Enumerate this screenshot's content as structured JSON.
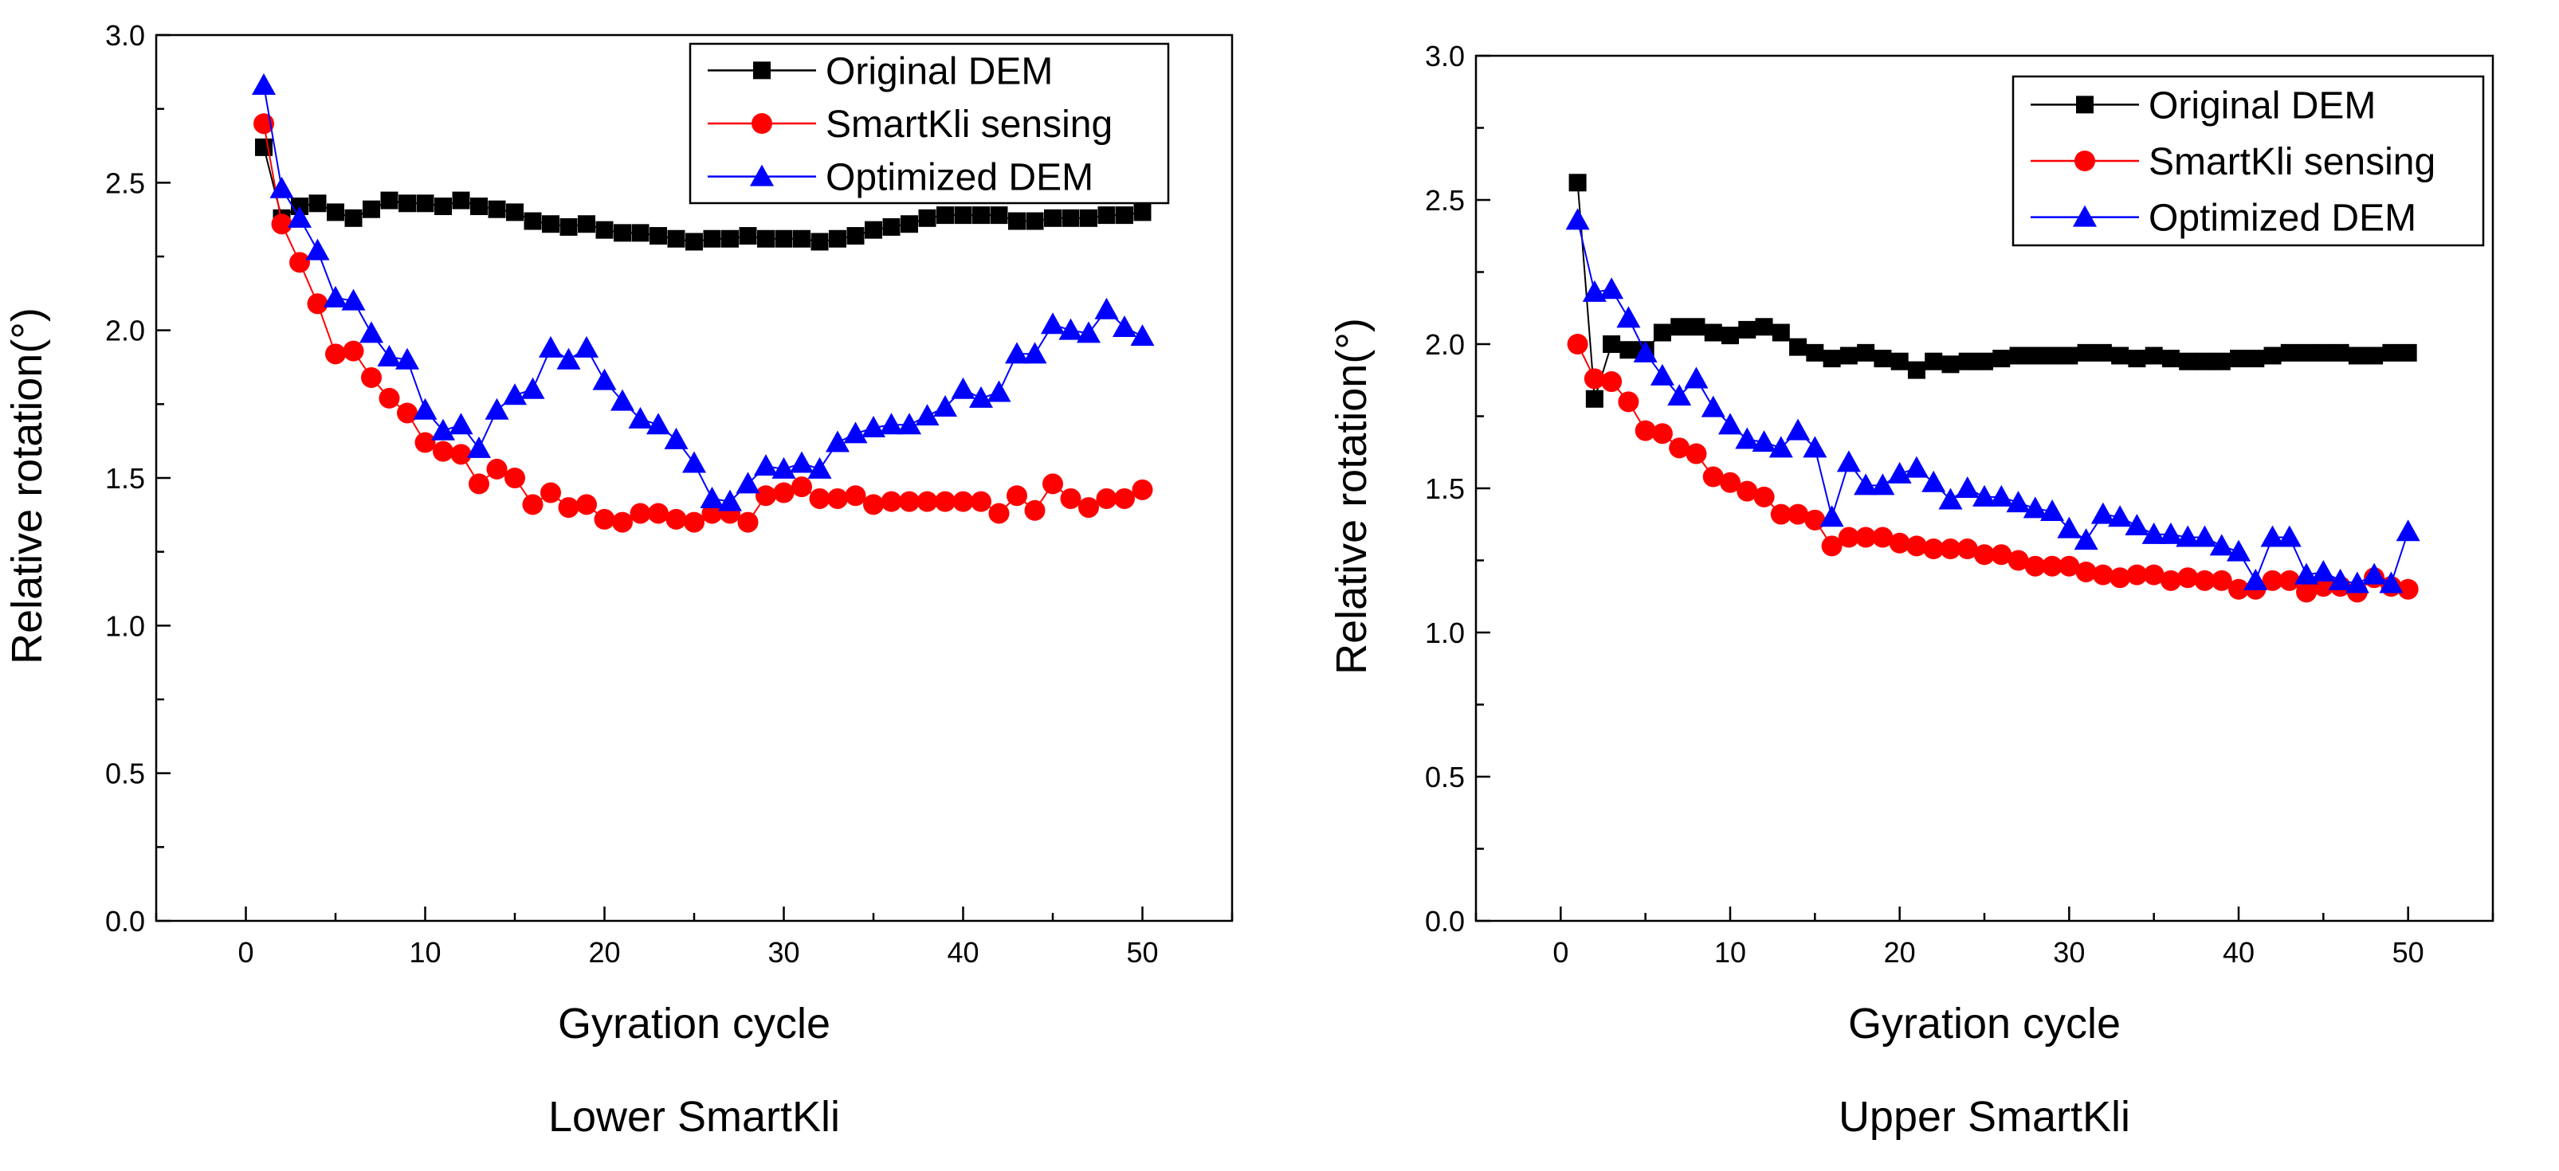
{
  "chart_data": [
    {
      "type": "line",
      "caption": "Lower SmartKli",
      "xlabel": "Gyration cycle",
      "ylabel": "Relative rotation(°)",
      "xlim": [
        -5,
        55
      ],
      "ylim": [
        0,
        3.0
      ],
      "xticks": [
        0,
        10,
        20,
        30,
        40,
        50
      ],
      "yticks": [
        0.0,
        0.5,
        1.0,
        1.5,
        2.0,
        2.5,
        3.0
      ],
      "ytick_labels": [
        "0.0",
        "0.5",
        "1.0",
        "1.5",
        "2.0",
        "2.5",
        "3.0"
      ],
      "legend_position": "top-right",
      "grid": false,
      "x": [
        1,
        2,
        3,
        4,
        5,
        6,
        7,
        8,
        9,
        10,
        11,
        12,
        13,
        14,
        15,
        16,
        17,
        18,
        19,
        20,
        21,
        22,
        23,
        24,
        25,
        26,
        27,
        28,
        29,
        30,
        31,
        32,
        33,
        34,
        35,
        36,
        37,
        38,
        39,
        40,
        41,
        42,
        43,
        44,
        45,
        46,
        47,
        48,
        49,
        50
      ],
      "series": [
        {
          "name": "Original DEM",
          "color": "#000000",
          "marker": "square",
          "values": [
            2.62,
            2.38,
            2.42,
            2.43,
            2.4,
            2.38,
            2.41,
            2.44,
            2.43,
            2.43,
            2.42,
            2.44,
            2.42,
            2.41,
            2.4,
            2.37,
            2.36,
            2.35,
            2.36,
            2.34,
            2.33,
            2.33,
            2.32,
            2.31,
            2.3,
            2.31,
            2.31,
            2.32,
            2.31,
            2.31,
            2.31,
            2.3,
            2.31,
            2.32,
            2.34,
            2.35,
            2.36,
            2.38,
            2.39,
            2.39,
            2.39,
            2.39,
            2.37,
            2.37,
            2.38,
            2.38,
            2.38,
            2.39,
            2.39,
            2.4
          ]
        },
        {
          "name": "SmartKli sensing",
          "color": "#ff0000",
          "marker": "circle",
          "values": [
            2.7,
            2.36,
            2.23,
            2.09,
            1.92,
            1.93,
            1.84,
            1.77,
            1.72,
            1.62,
            1.59,
            1.58,
            1.48,
            1.53,
            1.5,
            1.41,
            1.45,
            1.4,
            1.41,
            1.36,
            1.35,
            1.38,
            1.38,
            1.36,
            1.35,
            1.38,
            1.38,
            1.35,
            1.44,
            1.45,
            1.47,
            1.43,
            1.43,
            1.44,
            1.41,
            1.42,
            1.42,
            1.42,
            1.42,
            1.42,
            1.42,
            1.38,
            1.44,
            1.39,
            1.48,
            1.43,
            1.4,
            1.43,
            1.43,
            1.46
          ]
        },
        {
          "name": "Optimized DEM",
          "color": "#0000ff",
          "marker": "triangle",
          "values": [
            2.83,
            2.48,
            2.38,
            2.27,
            2.11,
            2.1,
            1.99,
            1.91,
            1.9,
            1.73,
            1.66,
            1.68,
            1.6,
            1.73,
            1.78,
            1.8,
            1.94,
            1.9,
            1.94,
            1.83,
            1.76,
            1.7,
            1.68,
            1.63,
            1.55,
            1.43,
            1.42,
            1.48,
            1.54,
            1.53,
            1.55,
            1.53,
            1.62,
            1.65,
            1.67,
            1.68,
            1.68,
            1.71,
            1.74,
            1.8,
            1.77,
            1.79,
            1.92,
            1.92,
            2.02,
            2.0,
            1.99,
            2.07,
            2.01,
            1.98
          ]
        }
      ]
    },
    {
      "type": "line",
      "caption": "Upper SmartKli",
      "xlabel": "Gyration cycle",
      "ylabel": "Relative rotation(°)",
      "xlim": [
        -5,
        55
      ],
      "ylim": [
        0,
        3.0
      ],
      "xticks": [
        0,
        10,
        20,
        30,
        40,
        50
      ],
      "yticks": [
        0.0,
        0.5,
        1.0,
        1.5,
        2.0,
        2.5,
        3.0
      ],
      "ytick_labels": [
        "0.0",
        "0.5",
        "1.0",
        "1.5",
        "2.0",
        "2.5",
        "3.0"
      ],
      "legend_position": "top-right",
      "grid": false,
      "x": [
        1,
        2,
        3,
        4,
        5,
        6,
        7,
        8,
        9,
        10,
        11,
        12,
        13,
        14,
        15,
        16,
        17,
        18,
        19,
        20,
        21,
        22,
        23,
        24,
        25,
        26,
        27,
        28,
        29,
        30,
        31,
        32,
        33,
        34,
        35,
        36,
        37,
        38,
        39,
        40,
        41,
        42,
        43,
        44,
        45,
        46,
        47,
        48,
        49,
        50
      ],
      "series": [
        {
          "name": "Original DEM",
          "color": "#000000",
          "marker": "square",
          "values": [
            2.56,
            1.81,
            2.0,
            1.98,
            1.98,
            2.04,
            2.06,
            2.06,
            2.04,
            2.03,
            2.05,
            2.06,
            2.04,
            1.99,
            1.97,
            1.95,
            1.96,
            1.97,
            1.95,
            1.94,
            1.91,
            1.94,
            1.93,
            1.94,
            1.94,
            1.95,
            1.96,
            1.96,
            1.96,
            1.96,
            1.97,
            1.97,
            1.96,
            1.95,
            1.96,
            1.95,
            1.94,
            1.94,
            1.94,
            1.95,
            1.95,
            1.96,
            1.97,
            1.97,
            1.97,
            1.97,
            1.96,
            1.96,
            1.97,
            1.97
          ]
        },
        {
          "name": "SmartKli sensing",
          "color": "#ff0000",
          "marker": "circle",
          "values": [
            2.0,
            1.88,
            1.87,
            1.8,
            1.7,
            1.69,
            1.64,
            1.62,
            1.54,
            1.52,
            1.49,
            1.47,
            1.41,
            1.41,
            1.39,
            1.3,
            1.33,
            1.33,
            1.33,
            1.31,
            1.3,
            1.29,
            1.29,
            1.29,
            1.27,
            1.27,
            1.25,
            1.23,
            1.23,
            1.23,
            1.21,
            1.2,
            1.19,
            1.2,
            1.2,
            1.18,
            1.19,
            1.18,
            1.18,
            1.15,
            1.15,
            1.18,
            1.18,
            1.14,
            1.16,
            1.16,
            1.14,
            1.19,
            1.16,
            1.15
          ]
        },
        {
          "name": "Optimized DEM",
          "color": "#0000ff",
          "marker": "triangle",
          "values": [
            2.43,
            2.18,
            2.19,
            2.09,
            1.97,
            1.89,
            1.82,
            1.88,
            1.78,
            1.72,
            1.67,
            1.66,
            1.64,
            1.7,
            1.64,
            1.4,
            1.59,
            1.51,
            1.51,
            1.55,
            1.57,
            1.52,
            1.46,
            1.5,
            1.47,
            1.47,
            1.45,
            1.43,
            1.42,
            1.36,
            1.32,
            1.41,
            1.4,
            1.37,
            1.34,
            1.34,
            1.33,
            1.33,
            1.3,
            1.28,
            1.18,
            1.33,
            1.33,
            1.2,
            1.21,
            1.18,
            1.17,
            1.2,
            1.17,
            1.35
          ]
        }
      ]
    }
  ]
}
